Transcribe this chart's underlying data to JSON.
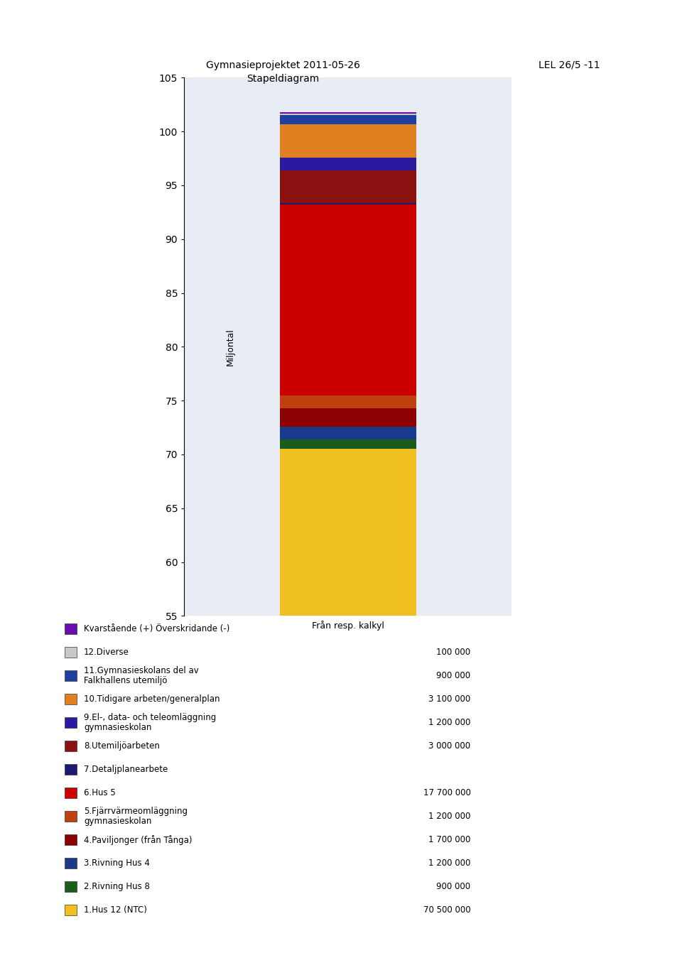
{
  "title_left": "Gymnasieprojektet 2011-05-26\nStapeldiagram",
  "title_right": "LEL 26/5 -11",
  "ylabel": "Miljontal",
  "xlabel": "Från resp. kalkyl",
  "ylim": [
    55,
    105
  ],
  "yticks": [
    55,
    60,
    65,
    70,
    75,
    80,
    85,
    90,
    95,
    100,
    105
  ],
  "background_color": "#e8ecf4",
  "figure_bg": "#ffffff",
  "segments": [
    {
      "label": "1.Hus 12 (NTC)",
      "value": 70.5,
      "color": "#f0c020",
      "amount": "70 500 000"
    },
    {
      "label": "2.Rivning Hus 8",
      "value": 0.9,
      "color": "#1a5c1a",
      "amount": "900 000"
    },
    {
      "label": "3.Rivning Hus 4",
      "value": 1.2,
      "color": "#1a3a8c",
      "amount": "1 200 000"
    },
    {
      "label": "4.Paviljonger (från Tånga)",
      "value": 1.7,
      "color": "#8b0000",
      "amount": "1 700 000"
    },
    {
      "label": "5.Fjärrvärmeomläggning gymnasieskolan",
      "value": 1.2,
      "color": "#c04010",
      "amount": "1 200 000"
    },
    {
      "label": "6.Hus 5",
      "value": 17.7,
      "color": "#cc0000",
      "amount": "17 700 000"
    },
    {
      "label": "7.Detaljplanearbete",
      "value": 0.15,
      "color": "#1a1a6e",
      "amount": ""
    },
    {
      "label": "8.Utemiljöarbeten",
      "value": 3.0,
      "color": "#8b1010",
      "amount": "3 000 000"
    },
    {
      "label": "9.El-, data- och teleomläggning gymnasieskolan",
      "value": 1.2,
      "color": "#2b1aa0",
      "amount": "1 200 000"
    },
    {
      "label": "10.Tidigare arbeten/generalplan",
      "value": 3.1,
      "color": "#e08020",
      "amount": "3 100 000"
    },
    {
      "label": "11.Gymnasieskolans del av Falkhallens utemiljö",
      "value": 0.9,
      "color": "#1e3f9e",
      "amount": "900 000"
    },
    {
      "label": "12.Diverse",
      "value": 0.1,
      "color": "#c8c8c8",
      "amount": "100 000"
    },
    {
      "label": "Kvarstående (+) Överskridande (-)",
      "value": 0.15,
      "color": "#6a0dad",
      "amount": ""
    }
  ]
}
